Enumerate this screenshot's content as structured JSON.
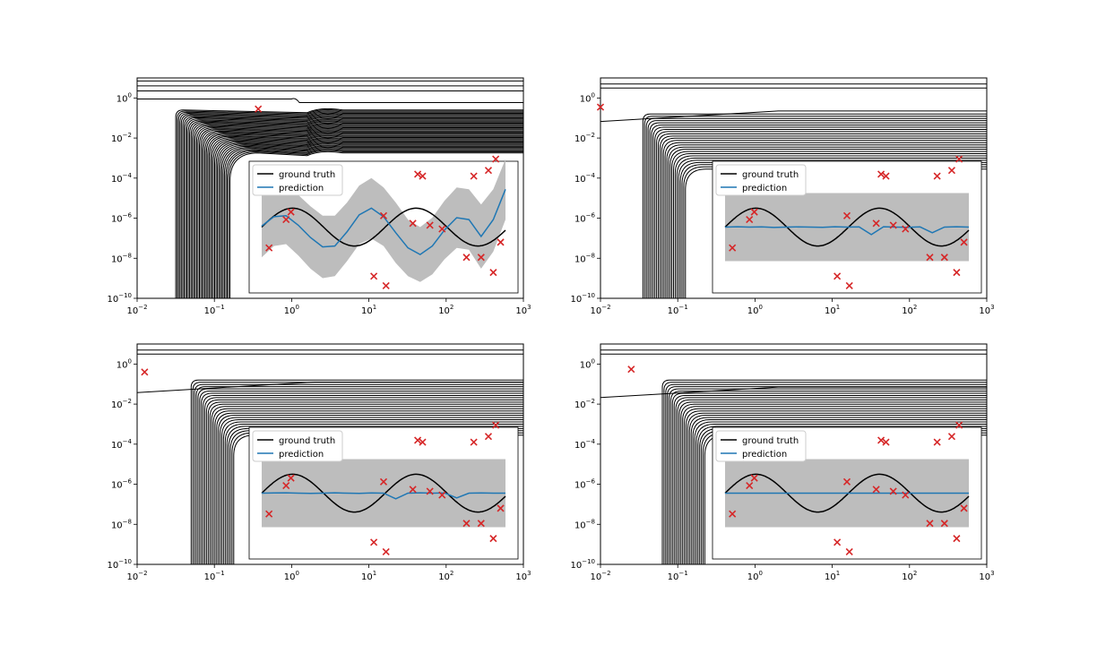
{
  "colors": {
    "contour": "#000000",
    "points": "#d62728",
    "ground_truth": "#000000",
    "prediction": "#1f77b4",
    "band": "#bdbdbd"
  },
  "chart_data": [
    {
      "type": "contour",
      "x_scale": "log",
      "y_scale": "log",
      "xlim": [
        0.01,
        1000
      ],
      "ylim": [
        1e-10,
        10
      ],
      "x_ticks": [
        "10^-2",
        "10^-1",
        "10^0",
        "10^1",
        "10^2",
        "10^3"
      ],
      "y_ticks": [
        "10^-10",
        "10^-8",
        "10^-6",
        "10^-4",
        "10^-2",
        "10^0"
      ],
      "sample_point": {
        "x": 0.37,
        "y": 0.28
      },
      "inset": {
        "type": "line",
        "legend": [
          "ground truth",
          "prediction"
        ],
        "legend_placement": "top-left",
        "grid": false,
        "xlim": [
          0,
          10
        ],
        "ylim": [
          -3.2,
          3.2
        ],
        "ground_truth": {
          "x": [
            0.0,
            0.5,
            1.0,
            1.5,
            2.0,
            2.5,
            3.0,
            3.5,
            4.0,
            4.5,
            5.0,
            5.5,
            6.0,
            6.5,
            7.0,
            7.5,
            8.0,
            8.5,
            9.0,
            9.5,
            10.0
          ],
          "y": [
            0.0,
            0.92,
            0.98,
            0.21,
            -0.73,
            -1.0,
            -0.44,
            0.54,
            1.0,
            0.65,
            -0.3,
            -0.95,
            -0.85,
            0.06,
            0.89,
            0.97,
            0.23,
            -0.7,
            -1.0,
            -0.39,
            0.54
          ]
        },
        "prediction": {
          "x": [
            0.0,
            0.5,
            1.0,
            1.5,
            2.0,
            2.5,
            3.0,
            3.5,
            4.0,
            4.5,
            5.0,
            5.5,
            6.0,
            6.5,
            7.0,
            7.5,
            8.0,
            8.5,
            9.0,
            9.5,
            10.0
          ],
          "y": [
            0.05,
            0.55,
            0.6,
            0.1,
            -0.55,
            -1.05,
            -1.0,
            -0.25,
            0.65,
            1.0,
            0.55,
            -0.3,
            -1.1,
            -1.45,
            -1.0,
            -0.15,
            0.5,
            0.4,
            -0.5,
            0.4,
            2.0
          ]
        },
        "band": {
          "upper": [
            1.7,
            2.1,
            2.2,
            1.7,
            1.1,
            0.6,
            0.6,
            1.3,
            2.2,
            2.6,
            2.1,
            1.3,
            0.4,
            0.0,
            0.5,
            1.4,
            2.1,
            2.0,
            1.2,
            2.0,
            3.6
          ],
          "lower": [
            -1.6,
            -1.0,
            -0.9,
            -1.5,
            -2.2,
            -2.7,
            -2.6,
            -1.8,
            -0.9,
            -0.6,
            -1.0,
            -1.9,
            -2.6,
            -2.9,
            -2.5,
            -1.7,
            -1.1,
            -1.2,
            -2.2,
            -1.3,
            0.4
          ]
        },
        "observations": {
          "x": [
            0.3,
            1.0,
            1.2,
            4.6,
            5.0,
            5.1,
            6.2,
            6.4,
            6.6,
            6.9,
            7.4,
            8.4,
            9.0,
            9.5,
            9.8,
            8.7,
            9.3,
            9.6
          ],
          "y": [
            -1.1,
            0.4,
            0.8,
            -2.6,
            0.6,
            -3.1,
            0.2,
            2.8,
            2.7,
            0.1,
            -0.1,
            -1.6,
            -1.6,
            -2.4,
            -0.8,
            2.7,
            3.0,
            3.6
          ]
        }
      }
    },
    {
      "type": "contour",
      "x_scale": "log",
      "y_scale": "log",
      "xlim": [
        0.01,
        1000
      ],
      "ylim": [
        1e-10,
        10
      ],
      "x_ticks": [
        "10^-2",
        "10^-1",
        "10^0",
        "10^1",
        "10^2",
        "10^3"
      ],
      "y_ticks": [
        "10^-10",
        "10^-8",
        "10^-6",
        "10^-4",
        "10^-2",
        "10^0"
      ],
      "sample_point": {
        "x": 0.01,
        "y": 0.35
      },
      "inset": {
        "type": "line",
        "legend": [
          "ground truth",
          "prediction"
        ],
        "legend_placement": "top-left",
        "grid": false,
        "xlim": [
          0,
          10
        ],
        "ylim": [
          -3.2,
          3.2
        ],
        "ground_truth": {
          "x": [
            0.0,
            0.5,
            1.0,
            1.5,
            2.0,
            2.5,
            3.0,
            3.5,
            4.0,
            4.5,
            5.0,
            5.5,
            6.0,
            6.5,
            7.0,
            7.5,
            8.0,
            8.5,
            9.0,
            9.5,
            10.0
          ],
          "y": [
            0.0,
            0.92,
            0.98,
            0.21,
            -0.73,
            -1.0,
            -0.44,
            0.54,
            1.0,
            0.65,
            -0.3,
            -0.95,
            -0.85,
            0.06,
            0.89,
            0.97,
            0.23,
            -0.7,
            -1.0,
            -0.39,
            0.54
          ]
        },
        "prediction": {
          "x": [
            0.0,
            0.5,
            1.0,
            1.5,
            2.0,
            2.5,
            3.0,
            3.5,
            4.0,
            4.5,
            5.0,
            5.5,
            6.0,
            6.5,
            7.0,
            7.5,
            8.0,
            8.5,
            9.0,
            9.5,
            10.0
          ],
          "y": [
            0.0,
            0.02,
            0.0,
            0.01,
            -0.02,
            0.0,
            0.01,
            0.0,
            -0.01,
            0.02,
            0.0,
            0.01,
            -0.4,
            0.02,
            0.0,
            -0.01,
            0.01,
            -0.3,
            0.0,
            0.02,
            0.0
          ]
        },
        "band": {
          "upper": [
            1.8,
            1.8,
            1.8,
            1.8,
            1.8,
            1.8,
            1.8,
            1.8,
            1.8,
            1.8,
            1.8,
            1.8,
            1.8,
            1.8,
            1.8,
            1.8,
            1.8,
            1.8,
            1.8,
            1.8,
            1.8
          ],
          "lower": [
            -1.8,
            -1.8,
            -1.8,
            -1.8,
            -1.8,
            -1.8,
            -1.8,
            -1.8,
            -1.8,
            -1.8,
            -1.8,
            -1.8,
            -1.8,
            -1.8,
            -1.8,
            -1.8,
            -1.8,
            -1.8,
            -1.8,
            -1.8,
            -1.8
          ]
        },
        "observations": {
          "x": [
            0.3,
            1.0,
            1.2,
            4.6,
            5.0,
            5.1,
            6.2,
            6.4,
            6.6,
            6.9,
            7.4,
            8.4,
            9.0,
            9.5,
            9.8,
            8.7,
            9.3,
            9.6
          ],
          "y": [
            -1.1,
            0.4,
            0.8,
            -2.6,
            0.6,
            -3.1,
            0.2,
            2.8,
            2.7,
            0.1,
            -0.1,
            -1.6,
            -1.6,
            -2.4,
            -0.8,
            2.7,
            3.0,
            3.6
          ]
        }
      }
    },
    {
      "type": "contour",
      "x_scale": "log",
      "y_scale": "log",
      "xlim": [
        0.01,
        1000
      ],
      "ylim": [
        1e-10,
        10
      ],
      "x_ticks": [
        "10^-2",
        "10^-1",
        "10^0",
        "10^1",
        "10^2",
        "10^3"
      ],
      "y_ticks": [
        "10^-10",
        "10^-8",
        "10^-6",
        "10^-4",
        "10^-2",
        "10^0"
      ],
      "sample_point": {
        "x": 0.0125,
        "y": 0.4
      },
      "inset": {
        "type": "line",
        "legend": [
          "ground truth",
          "prediction"
        ],
        "legend_placement": "top-left",
        "grid": false,
        "xlim": [
          0,
          10
        ],
        "ylim": [
          -3.2,
          3.2
        ],
        "ground_truth": {
          "x": [
            0.0,
            0.5,
            1.0,
            1.5,
            2.0,
            2.5,
            3.0,
            3.5,
            4.0,
            4.5,
            5.0,
            5.5,
            6.0,
            6.5,
            7.0,
            7.5,
            8.0,
            8.5,
            9.0,
            9.5,
            10.0
          ],
          "y": [
            0.0,
            0.92,
            0.98,
            0.21,
            -0.73,
            -1.0,
            -0.44,
            0.54,
            1.0,
            0.65,
            -0.3,
            -0.95,
            -0.85,
            0.06,
            0.89,
            0.97,
            0.23,
            -0.7,
            -1.0,
            -0.39,
            0.54
          ]
        },
        "prediction": {
          "x": [
            0.0,
            0.5,
            1.0,
            1.5,
            2.0,
            2.5,
            3.0,
            3.5,
            4.0,
            4.5,
            5.0,
            5.5,
            6.0,
            6.5,
            7.0,
            7.5,
            8.0,
            8.5,
            9.0,
            9.5,
            10.0
          ],
          "y": [
            0.0,
            0.01,
            0.02,
            0.0,
            -0.01,
            0.0,
            0.02,
            0.0,
            -0.01,
            0.01,
            0.0,
            -0.3,
            0.0,
            0.02,
            0.0,
            0.01,
            -0.25,
            0.0,
            0.01,
            0.0,
            0.0
          ]
        },
        "band": {
          "upper": [
            1.8,
            1.8,
            1.8,
            1.8,
            1.8,
            1.8,
            1.8,
            1.8,
            1.8,
            1.8,
            1.8,
            1.8,
            1.8,
            1.8,
            1.8,
            1.8,
            1.8,
            1.8,
            1.8,
            1.8,
            1.8
          ],
          "lower": [
            -1.8,
            -1.8,
            -1.8,
            -1.8,
            -1.8,
            -1.8,
            -1.8,
            -1.8,
            -1.8,
            -1.8,
            -1.8,
            -1.8,
            -1.8,
            -1.8,
            -1.8,
            -1.8,
            -1.8,
            -1.8,
            -1.8,
            -1.8,
            -1.8
          ]
        },
        "observations": {
          "x": [
            0.3,
            1.0,
            1.2,
            4.6,
            5.0,
            5.1,
            6.2,
            6.4,
            6.6,
            6.9,
            7.4,
            8.4,
            9.0,
            9.5,
            9.8,
            8.7,
            9.3,
            9.6
          ],
          "y": [
            -1.1,
            0.4,
            0.8,
            -2.6,
            0.6,
            -3.1,
            0.2,
            2.8,
            2.7,
            0.1,
            -0.1,
            -1.6,
            -1.6,
            -2.4,
            -0.8,
            2.7,
            3.0,
            3.6
          ]
        }
      }
    },
    {
      "type": "contour",
      "x_scale": "log",
      "y_scale": "log",
      "xlim": [
        0.01,
        1000
      ],
      "ylim": [
        1e-10,
        10
      ],
      "x_ticks": [
        "10^-2",
        "10^-1",
        "10^0",
        "10^1",
        "10^2",
        "10^3"
      ],
      "y_ticks": [
        "10^-10",
        "10^-8",
        "10^-6",
        "10^-4",
        "10^-2",
        "10^0"
      ],
      "sample_point": {
        "x": 0.025,
        "y": 0.55
      },
      "inset": {
        "type": "line",
        "legend": [
          "ground truth",
          "prediction"
        ],
        "legend_placement": "top-left",
        "grid": false,
        "xlim": [
          0,
          10
        ],
        "ylim": [
          -3.2,
          3.2
        ],
        "ground_truth": {
          "x": [
            0.0,
            0.5,
            1.0,
            1.5,
            2.0,
            2.5,
            3.0,
            3.5,
            4.0,
            4.5,
            5.0,
            5.5,
            6.0,
            6.5,
            7.0,
            7.5,
            8.0,
            8.5,
            9.0,
            9.5,
            10.0
          ],
          "y": [
            0.0,
            0.92,
            0.98,
            0.21,
            -0.73,
            -1.0,
            -0.44,
            0.54,
            1.0,
            0.65,
            -0.3,
            -0.95,
            -0.85,
            0.06,
            0.89,
            0.97,
            0.23,
            -0.7,
            -1.0,
            -0.39,
            0.54
          ]
        },
        "prediction": {
          "x": [
            0.0,
            0.5,
            1.0,
            1.5,
            2.0,
            2.5,
            3.0,
            3.5,
            4.0,
            4.5,
            5.0,
            5.5,
            6.0,
            6.5,
            7.0,
            7.5,
            8.0,
            8.5,
            9.0,
            9.5,
            10.0
          ],
          "y": [
            0.0,
            0.0,
            0.0,
            0.0,
            0.0,
            0.0,
            0.0,
            0.0,
            0.0,
            0.0,
            0.0,
            0.0,
            0.0,
            0.0,
            0.0,
            0.0,
            0.0,
            0.0,
            0.0,
            0.0,
            0.0
          ]
        },
        "band": {
          "upper": [
            1.8,
            1.8,
            1.8,
            1.8,
            1.8,
            1.8,
            1.8,
            1.8,
            1.8,
            1.8,
            1.8,
            1.8,
            1.8,
            1.8,
            1.8,
            1.8,
            1.8,
            1.8,
            1.8,
            1.8,
            1.8
          ],
          "lower": [
            -1.8,
            -1.8,
            -1.8,
            -1.8,
            -1.8,
            -1.8,
            -1.8,
            -1.8,
            -1.8,
            -1.8,
            -1.8,
            -1.8,
            -1.8,
            -1.8,
            -1.8,
            -1.8,
            -1.8,
            -1.8,
            -1.8,
            -1.8,
            -1.8
          ]
        },
        "observations": {
          "x": [
            0.3,
            1.0,
            1.2,
            4.6,
            5.0,
            5.1,
            6.2,
            6.4,
            6.6,
            6.9,
            7.4,
            8.4,
            9.0,
            9.5,
            9.8,
            8.7,
            9.3,
            9.6
          ],
          "y": [
            -1.1,
            0.4,
            0.8,
            -2.6,
            0.6,
            -3.1,
            0.2,
            2.8,
            2.7,
            0.1,
            -0.1,
            -1.6,
            -1.6,
            -2.4,
            -0.8,
            2.7,
            3.0,
            3.6
          ]
        }
      }
    }
  ]
}
